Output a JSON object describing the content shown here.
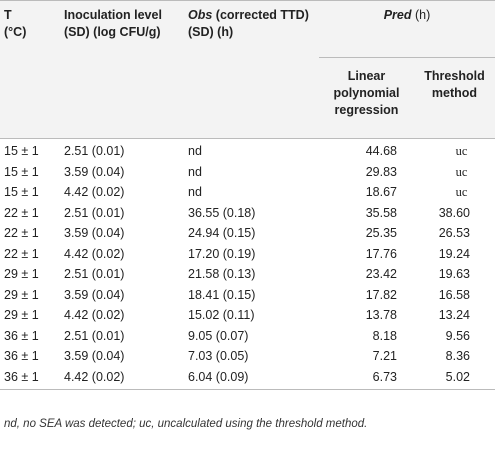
{
  "header": {
    "t_line1": "T",
    "t_line2": "(°C)",
    "inoculation": "Inoculation level (SD) (log CFU/g)",
    "obs": "Obs",
    "obs_rest": "(corrected TTD) (SD) (h)",
    "pred": "Pred",
    "pred_rest": "(h)",
    "linear": "Linear polynomial regression",
    "threshold": "Threshold method"
  },
  "table": {
    "rows": [
      [
        "15 ± 1",
        "2.51 (0.01)",
        "nd",
        "44.68",
        "uc"
      ],
      [
        "15 ± 1",
        "3.59 (0.04)",
        "nd",
        "29.83",
        "uc"
      ],
      [
        "15 ± 1",
        "4.42 (0.02)",
        "nd",
        "18.67",
        "uc"
      ],
      [
        "22 ± 1",
        "2.51 (0.01)",
        "36.55 (0.18)",
        "35.58",
        "38.60"
      ],
      [
        "22 ± 1",
        "3.59 (0.04)",
        "24.94 (0.15)",
        "25.35",
        "26.53"
      ],
      [
        "22 ± 1",
        "4.42 (0.02)",
        "17.20 (0.19)",
        "17.76",
        "19.24"
      ],
      [
        "29 ± 1",
        "2.51 (0.01)",
        "21.58 (0.13)",
        "23.42",
        "19.63"
      ],
      [
        "29 ± 1",
        "3.59 (0.04)",
        "18.41 (0.15)",
        "17.82",
        "16.58"
      ],
      [
        "29 ± 1",
        "4.42 (0.02)",
        "15.02 (0.11)",
        "13.78",
        "13.24"
      ],
      [
        "36 ± 1",
        "2.51 (0.01)",
        "9.05 (0.07)",
        "8.18",
        "9.56"
      ],
      [
        "36 ± 1",
        "3.59 (0.04)",
        "7.03 (0.05)",
        "7.21",
        "8.36"
      ],
      [
        "36 ± 1",
        "4.42 (0.02)",
        "6.04 (0.09)",
        "6.73",
        "5.02"
      ]
    ]
  },
  "footnote": "nd, no SEA was detected; uc, uncalculated using the threshold method."
}
